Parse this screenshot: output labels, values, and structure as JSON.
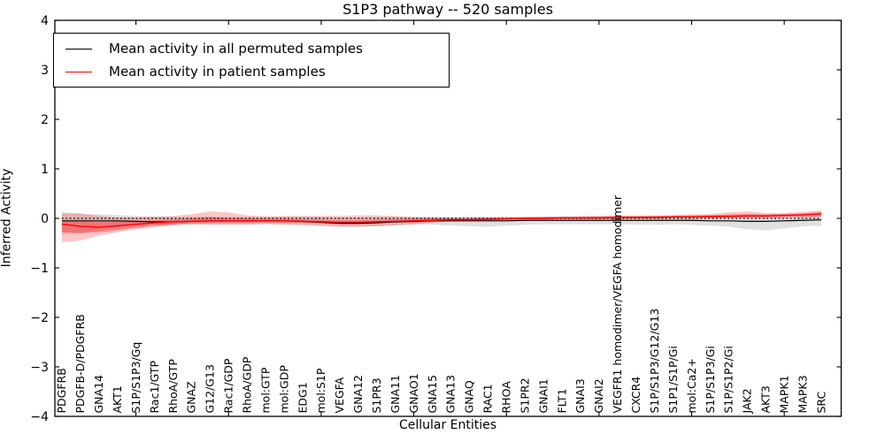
{
  "figure": {
    "title": "S1P3 pathway -- 520 samples",
    "xlabel": "Cellular Entities",
    "ylabel": "Inferred Activity"
  },
  "legend": {
    "position": "upper left",
    "items": [
      {
        "label": "Mean activity in all permuted samples",
        "color": "#000000"
      },
      {
        "label": "Mean activity in patient samples",
        "color": "#ff0000"
      }
    ]
  },
  "colors": {
    "axis": "#000000",
    "zero_line": "#000000",
    "permuted_line": "#000000",
    "patient_line": "#ff0000",
    "permuted_band": "rgba(0,0,0,0.12)",
    "patient_outer_band": "rgba(255,0,0,0.22)",
    "patient_inner_band": "rgba(255,0,0,0.33)"
  },
  "chart_data": {
    "type": "line",
    "title": "S1P3 pathway -- 520 samples",
    "xlabel": "Cellular Entities",
    "ylabel": "Inferred Activity",
    "ylim": [
      -4,
      4
    ],
    "yticks": [
      4,
      3,
      2,
      1,
      0,
      -1,
      -2,
      -3,
      -4
    ],
    "xtick_positions": [
      4,
      9,
      14,
      19,
      24,
      29,
      34,
      39
    ],
    "grid": false,
    "zero_line_style": "dotted",
    "legend_position": "upper left",
    "categories": [
      "PDGFRB",
      "PDGFB-D/PDGFRB",
      "GNA14",
      "AKT1",
      "S1P/S1P3/Gq",
      "Rac1/GTP",
      "RhoA/GTP",
      "GNAZ",
      "G12/G13",
      "Rac1/GDP",
      "RhoA/GDP",
      "mol:GTP",
      "mol:GDP",
      "EDG1",
      "mol:S1P",
      "VEGFA",
      "GNA12",
      "S1PR3",
      "GNA11",
      "GNAO1",
      "GNA15",
      "GNA13",
      "GNAQ",
      "RAC1",
      "RHOA",
      "S1PR2",
      "GNAI1",
      "FLT1",
      "GNAI3",
      "GNAI2",
      "VEGFR1 homodimer/VEGFA homodimer",
      "CXCR4",
      "S1P/S1P3/G12/G13",
      "S1P1/S1P/Gi",
      "mol:Ca2+",
      "S1P/S1P3/Gi",
      "S1P/S1P2/Gi",
      "JAK2",
      "AKT3",
      "MAPK1",
      "MAPK3",
      "SRC"
    ],
    "series": [
      {
        "name": "Mean activity in all permuted samples",
        "color": "#000000",
        "values": [
          -0.05,
          -0.05,
          -0.05,
          -0.05,
          -0.06,
          -0.07,
          -0.07,
          -0.06,
          -0.05,
          -0.05,
          -0.05,
          -0.05,
          -0.05,
          -0.06,
          -0.08,
          -0.1,
          -0.1,
          -0.09,
          -0.07,
          -0.06,
          -0.05,
          -0.05,
          -0.05,
          -0.05,
          -0.05,
          -0.04,
          -0.04,
          -0.04,
          -0.04,
          -0.04,
          -0.04,
          -0.04,
          -0.04,
          -0.04,
          -0.04,
          -0.05,
          -0.05,
          -0.06,
          -0.06,
          -0.05,
          -0.04,
          -0.03
        ],
        "band_lo": [
          -0.33,
          -0.3,
          -0.25,
          -0.18,
          -0.15,
          -0.14,
          -0.13,
          -0.12,
          -0.13,
          -0.12,
          -0.13,
          -0.12,
          -0.13,
          -0.14,
          -0.16,
          -0.18,
          -0.17,
          -0.16,
          -0.14,
          -0.13,
          -0.13,
          -0.14,
          -0.16,
          -0.17,
          -0.15,
          -0.13,
          -0.12,
          -0.12,
          -0.12,
          -0.12,
          -0.12,
          -0.13,
          -0.13,
          -0.12,
          -0.13,
          -0.15,
          -0.17,
          -0.22,
          -0.24,
          -0.2,
          -0.16,
          -0.15
        ],
        "band_hi": [
          0.1,
          0.09,
          0.08,
          0.07,
          0.05,
          0.04,
          0.03,
          0.03,
          0.04,
          0.03,
          0.03,
          0.03,
          0.03,
          0.03,
          0.03,
          0.02,
          0.02,
          0.03,
          0.03,
          0.03,
          0.03,
          0.03,
          0.03,
          0.03,
          0.03,
          0.03,
          0.03,
          0.03,
          0.03,
          0.03,
          0.03,
          0.03,
          0.03,
          0.03,
          0.04,
          0.05,
          0.05,
          0.06,
          0.05,
          0.04,
          0.04,
          0.04
        ]
      },
      {
        "name": "Mean activity in patient samples",
        "color": "#ff0000",
        "values": [
          -0.12,
          -0.16,
          -0.18,
          -0.15,
          -0.12,
          -0.09,
          -0.07,
          -0.06,
          -0.05,
          -0.05,
          -0.05,
          -0.05,
          -0.05,
          -0.06,
          -0.07,
          -0.08,
          -0.08,
          -0.07,
          -0.06,
          -0.05,
          -0.04,
          -0.03,
          -0.03,
          -0.02,
          -0.01,
          0.0,
          0.0,
          0.01,
          0.01,
          0.01,
          0.02,
          0.02,
          0.02,
          0.03,
          0.03,
          0.04,
          0.04,
          0.05,
          0.05,
          0.06,
          0.07,
          0.09
        ],
        "outer_band_lo": [
          -0.48,
          -0.45,
          -0.35,
          -0.28,
          -0.22,
          -0.18,
          -0.14,
          -0.12,
          -0.12,
          -0.13,
          -0.12,
          -0.11,
          -0.12,
          -0.13,
          -0.14,
          -0.16,
          -0.17,
          -0.16,
          -0.14,
          -0.12,
          -0.09,
          -0.06,
          -0.05,
          -0.05,
          -0.04,
          -0.03,
          -0.03,
          -0.02,
          -0.02,
          -0.02,
          -0.01,
          -0.01,
          -0.01,
          0.0,
          0.0,
          0.0,
          0.01,
          0.01,
          0.01,
          0.02,
          0.02,
          0.03
        ],
        "outer_band_hi": [
          0.12,
          0.1,
          0.05,
          0.02,
          0.02,
          0.03,
          0.05,
          0.08,
          0.14,
          0.12,
          0.06,
          0.04,
          0.05,
          0.05,
          0.05,
          0.05,
          0.06,
          0.06,
          0.05,
          0.03,
          0.02,
          0.02,
          0.02,
          0.02,
          0.03,
          0.03,
          0.04,
          0.04,
          0.05,
          0.05,
          0.06,
          0.06,
          0.06,
          0.07,
          0.08,
          0.09,
          0.12,
          0.14,
          0.11,
          0.11,
          0.13,
          0.16
        ],
        "inner_band_lo": [
          -0.28,
          -0.3,
          -0.28,
          -0.24,
          -0.19,
          -0.15,
          -0.12,
          -0.1,
          -0.09,
          -0.09,
          -0.09,
          -0.08,
          -0.09,
          -0.09,
          -0.1,
          -0.11,
          -0.11,
          -0.1,
          -0.09,
          -0.08,
          -0.06,
          -0.05,
          -0.04,
          -0.04,
          -0.03,
          -0.02,
          -0.02,
          -0.01,
          -0.01,
          -0.01,
          0.0,
          0.0,
          0.0,
          0.01,
          0.01,
          0.01,
          0.02,
          0.02,
          0.02,
          0.03,
          0.03,
          0.04
        ],
        "inner_band_hi": [
          -0.05,
          -0.06,
          -0.07,
          -0.06,
          -0.05,
          -0.04,
          -0.02,
          0.0,
          0.02,
          0.01,
          0.0,
          -0.01,
          -0.01,
          -0.02,
          -0.03,
          -0.04,
          -0.04,
          -0.03,
          -0.02,
          -0.01,
          0.0,
          0.0,
          0.0,
          0.01,
          0.01,
          0.02,
          0.02,
          0.03,
          0.03,
          0.04,
          0.04,
          0.04,
          0.05,
          0.05,
          0.06,
          0.06,
          0.08,
          0.09,
          0.08,
          0.09,
          0.1,
          0.13
        ]
      }
    ]
  }
}
